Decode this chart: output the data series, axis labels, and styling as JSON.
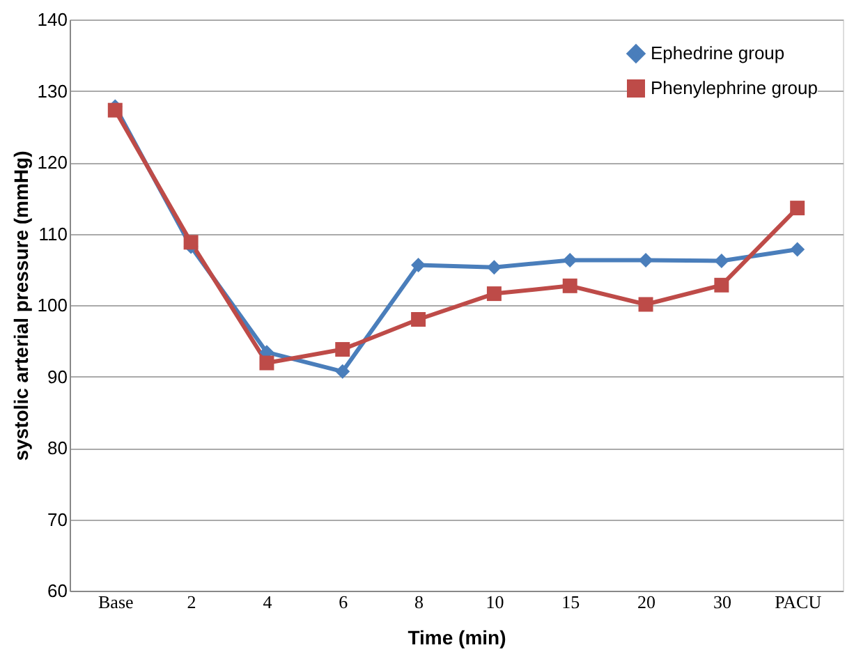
{
  "chart_data": {
    "type": "line",
    "xlabel": "Time (min)",
    "ylabel": "systolic arterial pressure (mmHg)",
    "categories": [
      "Base",
      "2",
      "4",
      "6",
      "8",
      "10",
      "15",
      "20",
      "30",
      "PACU"
    ],
    "series": [
      {
        "name": "Ephedrine group",
        "color": "#4a7ebb",
        "marker": "diamond",
        "values": [
          127.8,
          108.2,
          93.4,
          90.7,
          105.6,
          105.3,
          106.3,
          106.3,
          106.2,
          107.8
        ]
      },
      {
        "name": "Phenylephrine group",
        "color": "#be4b48",
        "marker": "square",
        "values": [
          127.3,
          108.8,
          91.9,
          93.8,
          98.0,
          101.6,
          102.7,
          100.1,
          102.8,
          113.6
        ]
      }
    ],
    "ylim": [
      60,
      140
    ],
    "yticks": [
      60,
      70,
      80,
      90,
      100,
      110,
      120,
      130,
      140
    ],
    "grid": "y",
    "legend": "top right"
  }
}
